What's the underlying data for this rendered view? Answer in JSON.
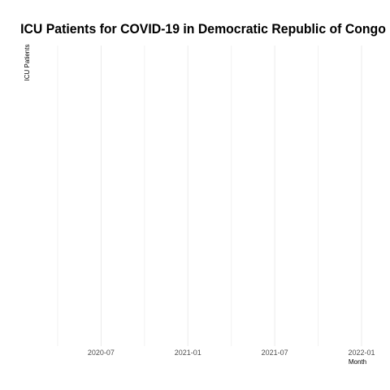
{
  "chart_data": {
    "type": "line",
    "title": "ICU Patients for COVID-19 in Democratic Republic of Congo",
    "xlabel": "Month",
    "ylabel": "ICU Patients",
    "x_ticks": [
      "2020-07",
      "2021-01",
      "2021-07",
      "2022-01"
    ],
    "x_minor_ticks": [
      "2020-04",
      "2020-10",
      "2021-04",
      "2021-10"
    ],
    "xlim": [
      "2020-04",
      "2022-01"
    ],
    "series": [],
    "grid": true,
    "legend": "none"
  }
}
